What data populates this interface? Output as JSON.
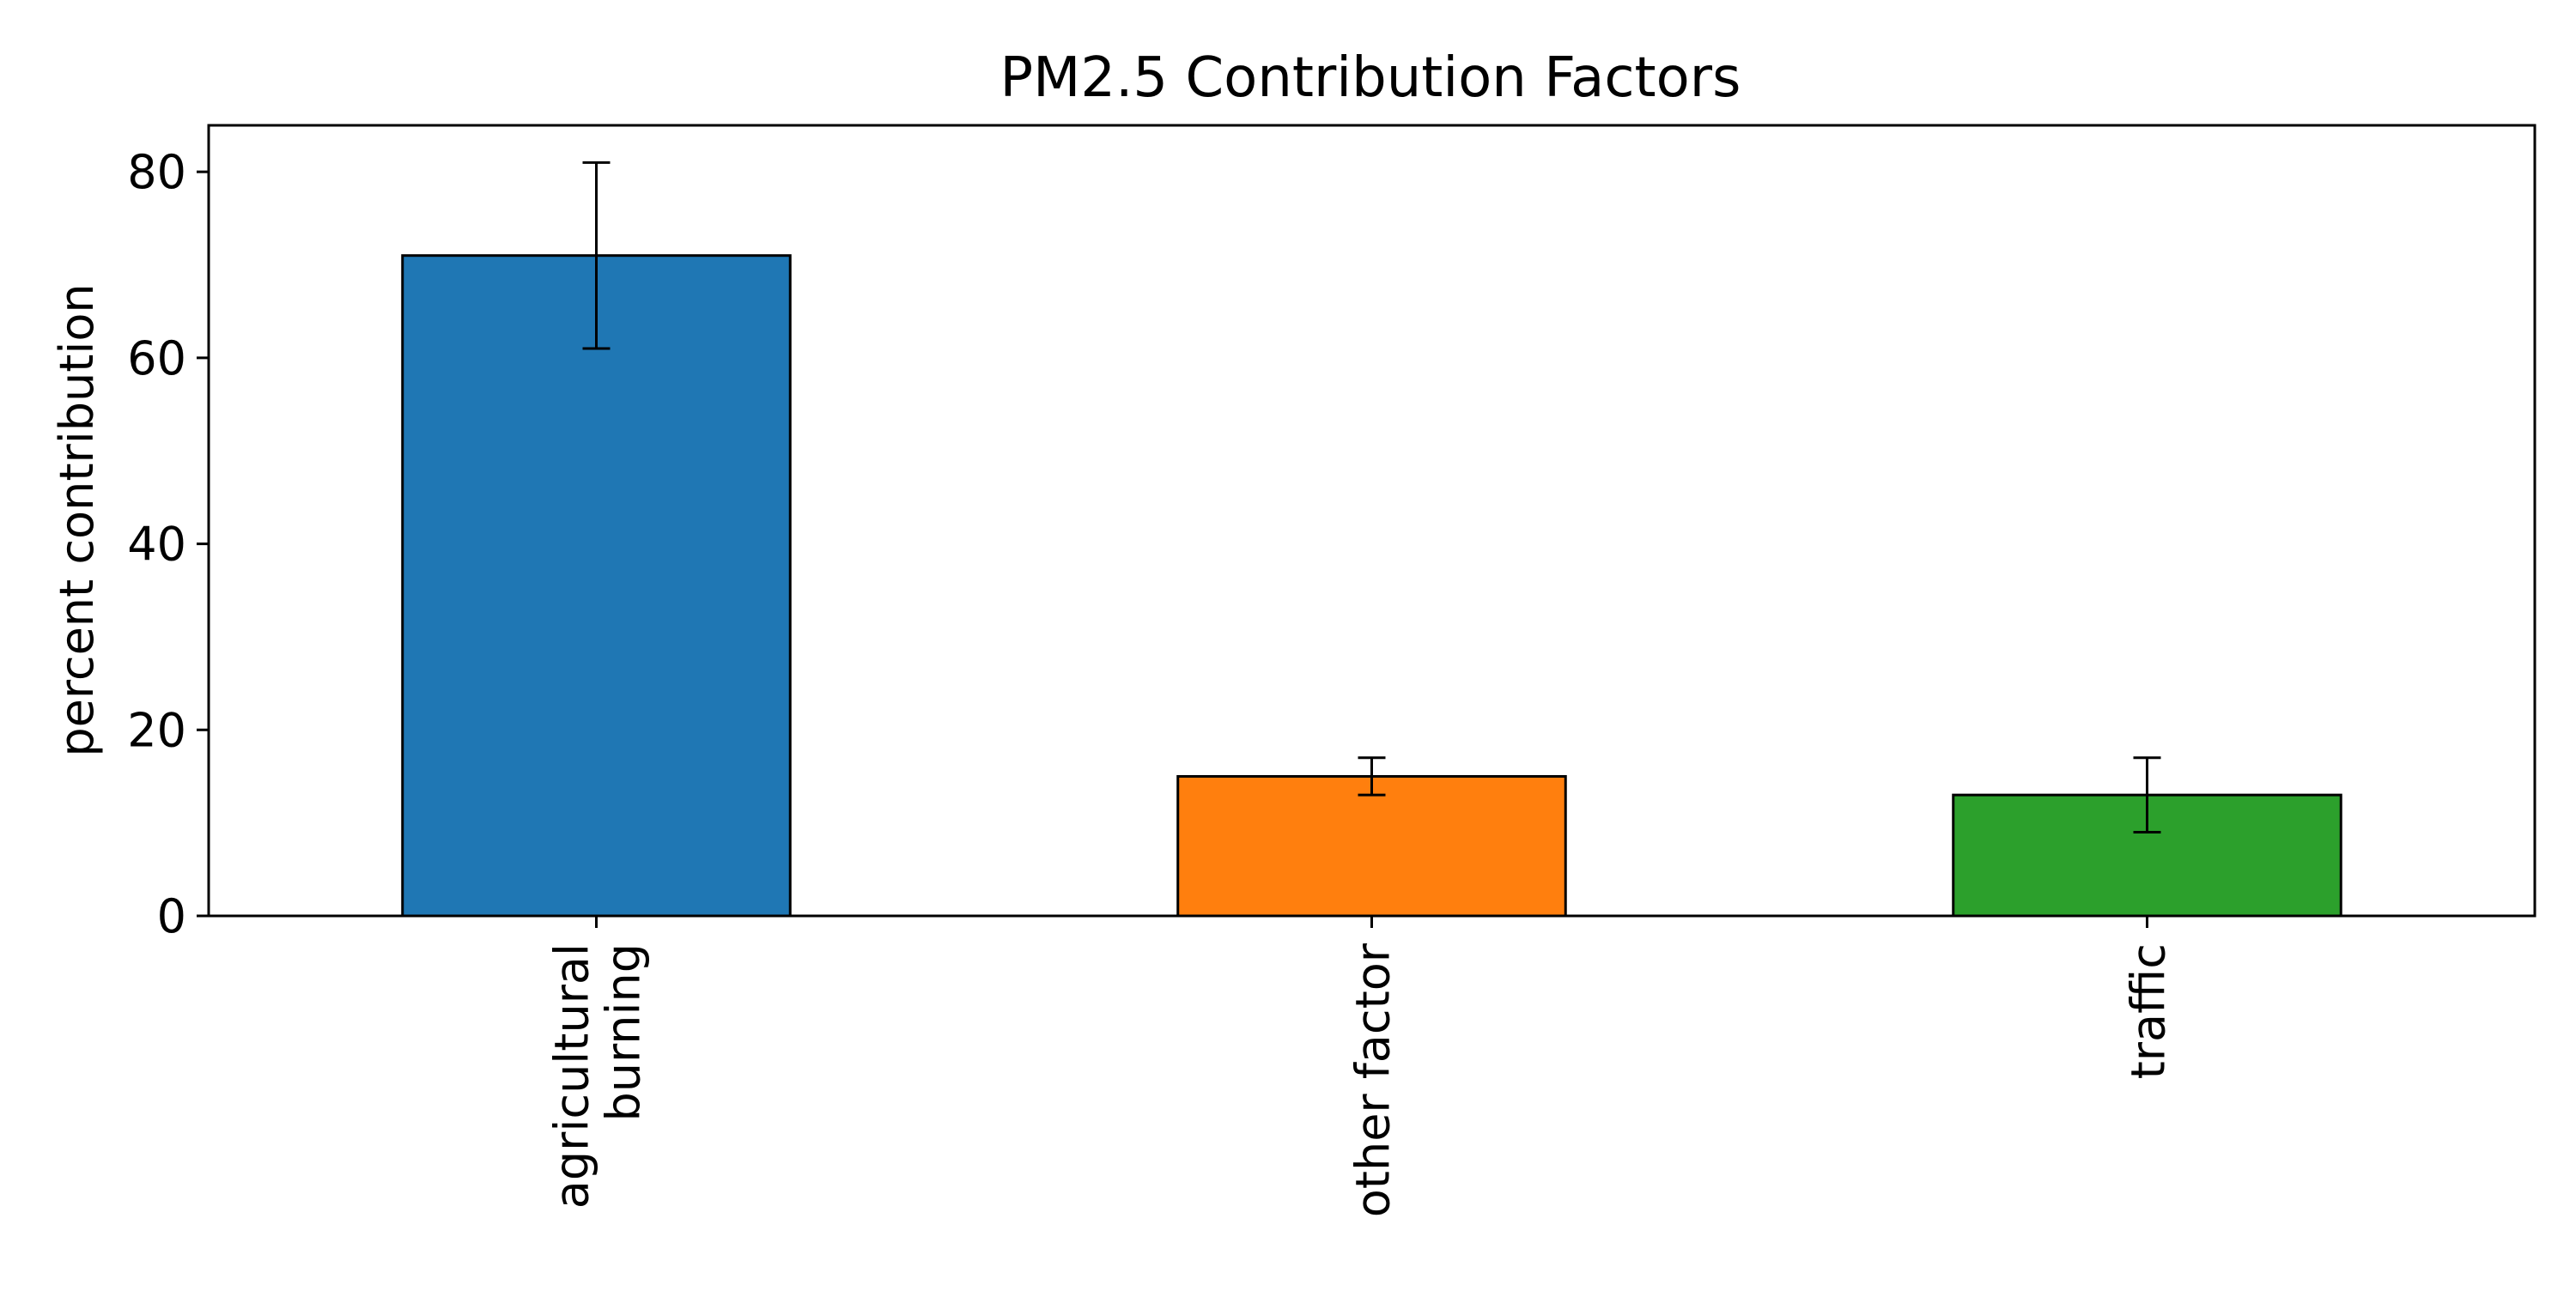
{
  "chart_data": {
    "type": "bar",
    "title": "PM2.5 Contribution Factors",
    "xlabel": "",
    "ylabel": "percent contribution",
    "categories": [
      [
        "agricultural",
        "burning"
      ],
      [
        "other factor"
      ],
      [
        "traffic"
      ]
    ],
    "values": [
      71,
      15,
      13
    ],
    "error": [
      10,
      2,
      4
    ],
    "colors": [
      "#1f77b4",
      "#ff7f0e",
      "#2ca02c"
    ],
    "ylim": [
      0,
      85
    ],
    "yticks": [
      0,
      20,
      40,
      60,
      80
    ],
    "grid": false,
    "legend": "none"
  }
}
